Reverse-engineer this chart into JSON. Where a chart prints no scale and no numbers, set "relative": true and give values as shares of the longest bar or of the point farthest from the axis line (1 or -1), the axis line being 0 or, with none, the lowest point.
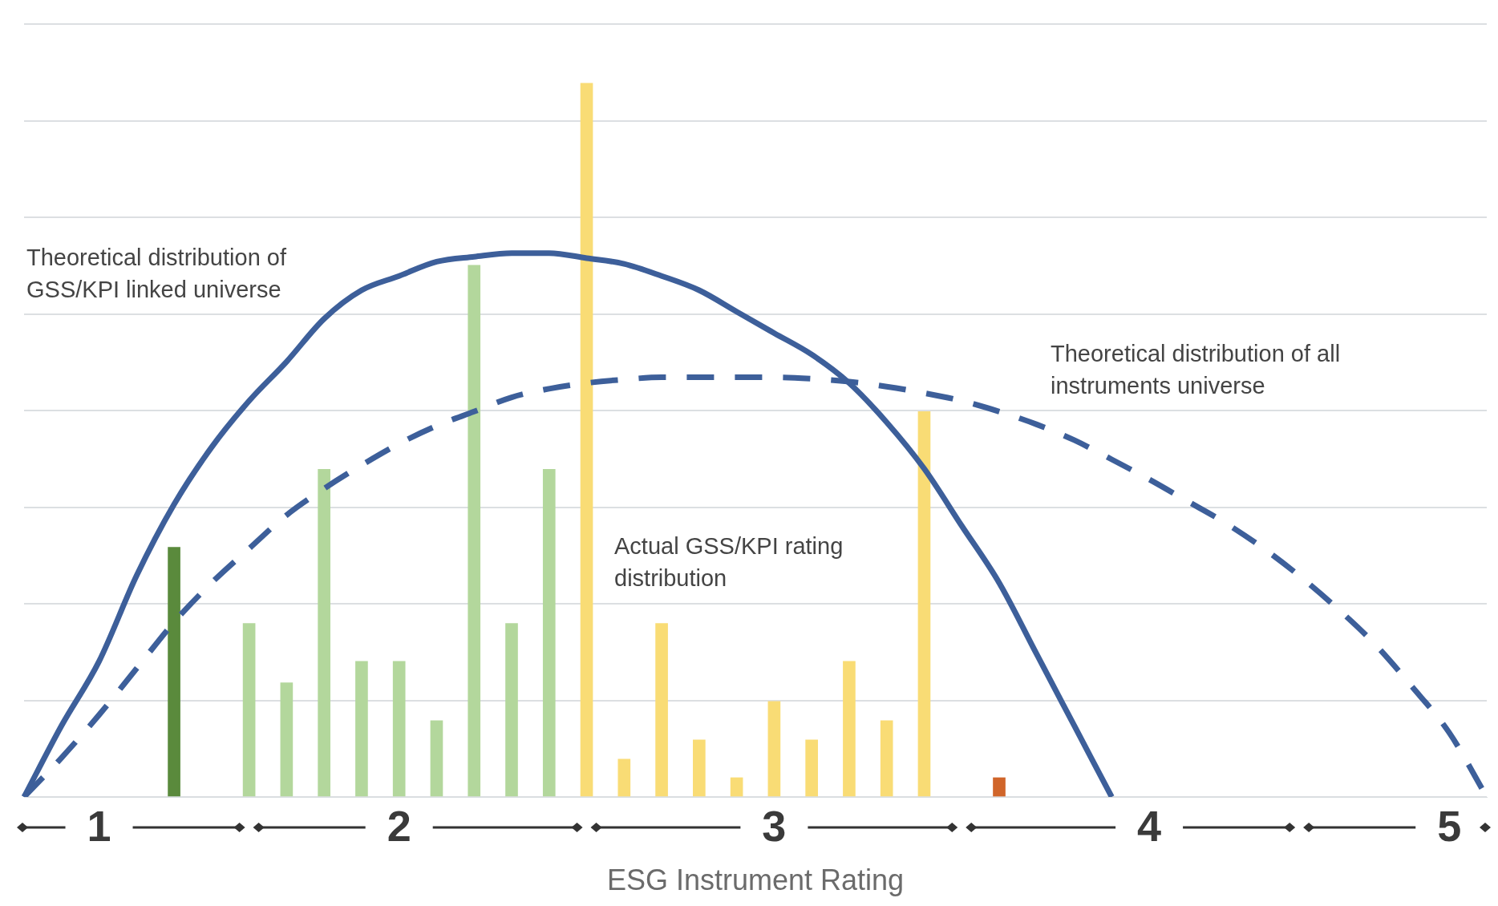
{
  "chart_data": {
    "type": "bar",
    "relative": true,
    "xlabel": "ESG Instrument Rating",
    "categories": [
      null,
      null,
      "1",
      null,
      null,
      null,
      null,
      null,
      null,
      null,
      "2",
      null,
      null,
      null,
      null,
      null,
      null,
      null,
      null,
      null,
      "3",
      null,
      null,
      null,
      null,
      null,
      null,
      null,
      null,
      null,
      "4",
      null,
      null,
      null,
      null,
      null,
      null,
      null,
      "5",
      null
    ],
    "grid": "y",
    "legend": false,
    "marker": "none",
    "series": [
      {
        "name": "Actual GSS/KPI rating distribution",
        "values": [
          null,
          null,
          null,
          null,
          0.35,
          null,
          0.243,
          0.16,
          0.459,
          0.19,
          0.19,
          0.107,
          0.745,
          0.243,
          0.459,
          1,
          0.053,
          0.243,
          0.08,
          0.027,
          0.134,
          0.08,
          0.19,
          0.107,
          0.54,
          null,
          0.027,
          null,
          null,
          null,
          null,
          null,
          null,
          null,
          null,
          null,
          null,
          null,
          null,
          null
        ],
        "colors": [
          "#b3d79c",
          "#b3d79c",
          "#b3d79c",
          "#b3d79c",
          "#5a8a3c",
          "#b3d79c",
          "#b3d79c",
          "#b3d79c",
          "#b3d79c",
          "#b3d79c",
          "#b3d79c",
          "#b3d79c",
          "#b3d79c",
          "#b3d79c",
          "#b3d79c",
          "#f9dc75",
          "#f9dc75",
          "#f9dc75",
          "#f9dc75",
          "#f9dc75",
          "#f9dc75",
          "#f9dc75",
          "#f9dc75",
          "#f9dc75",
          "#f9dc75",
          "#f9dc75",
          "#d0652a",
          "#d0652a",
          "#d0652a",
          "#d0652a",
          "#d0652a",
          "#d0652a",
          "#d0652a",
          "#d0652a",
          "#d0652a",
          "#d0652a",
          "#d0652a",
          "#d0652a",
          "#d0652a",
          "#d0652a"
        ]
      },
      {
        "type": "line",
        "name": "Theoretical distribution of GSS/KPI linked universe",
        "color": "#3d5f9a",
        "line_style": "solid",
        "values": [
          0,
          0.1,
          0.19,
          0.31,
          0.41,
          0.49,
          0.555,
          0.61,
          0.67,
          0.71,
          0.73,
          0.75,
          0.757,
          0.762,
          0.762,
          0.755,
          0.747,
          0.73,
          0.71,
          0.68,
          0.65,
          0.62,
          0.58,
          0.525,
          0.46,
          0.38,
          0.3,
          0.2,
          0.1,
          0,
          null,
          null,
          null,
          null,
          null,
          null,
          null,
          null,
          null,
          null
        ]
      },
      {
        "type": "line",
        "name": "Theoretical distribution of all instruments universe",
        "color": "#3d5f9a",
        "line_style": "dashed",
        "values": [
          0,
          0.055,
          0.115,
          0.18,
          0.245,
          0.3,
          0.348,
          0.395,
          0.432,
          0.465,
          0.495,
          0.52,
          0.54,
          0.56,
          0.572,
          0.58,
          0.585,
          0.588,
          0.588,
          0.588,
          0.588,
          0.586,
          0.582,
          0.575,
          0.566,
          0.555,
          0.54,
          0.522,
          0.5,
          0.473,
          0.445,
          0.415,
          0.385,
          0.35,
          0.31,
          0.265,
          0.215,
          0.155,
          0.09,
          0
        ]
      }
    ]
  }
}
